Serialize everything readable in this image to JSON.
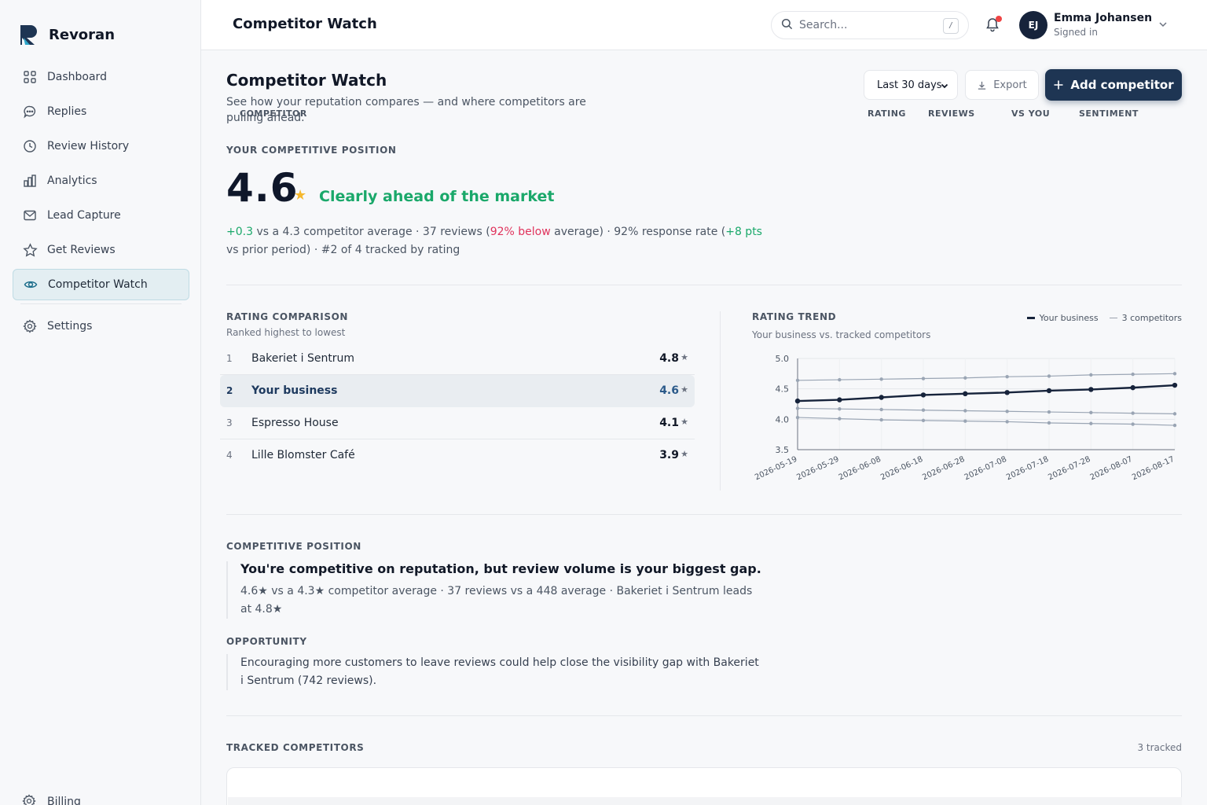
{
  "brand": {
    "name": "Revoran"
  },
  "sidebar": {
    "items": [
      {
        "label": "Dashboard",
        "icon": "grid-icon"
      },
      {
        "label": "Replies",
        "icon": "chat-icon"
      },
      {
        "label": "Review History",
        "icon": "clock-icon"
      },
      {
        "label": "Analytics",
        "icon": "bar-chart-icon"
      },
      {
        "label": "Lead Capture",
        "icon": "mail-icon"
      },
      {
        "label": "Get Reviews",
        "icon": "star-icon"
      },
      {
        "label": "Competitor Watch",
        "icon": "eye-icon",
        "active": true
      },
      {
        "label": "Settings",
        "icon": "gear-icon"
      }
    ],
    "billing": "Billing"
  },
  "header": {
    "title": "Competitor Watch",
    "search_placeholder": "Search...",
    "search_shortcut": "/",
    "user": {
      "initials": "EJ",
      "name": "Emma Johansen",
      "status": "Signed in"
    }
  },
  "page": {
    "title": "Competitor Watch",
    "subtitle": "See how your reputation compares — and where competitors are pulling ahead.",
    "period": "Last 30 days",
    "export_label": "Export",
    "add_label": "Add competitor"
  },
  "position": {
    "label": "YOUR COMPETITIVE POSITION",
    "rating": "4.6",
    "star": "★",
    "verdict": "Clearly ahead of the market",
    "delta": "+0.3",
    "detail_1": " vs a 4.3 competitor average · 37 reviews (",
    "below": "92% below",
    "detail_2": " average) · 92% response rate (",
    "pts": "+8 pts",
    "detail_3": " vs prior period) · #2 of 4 tracked by rating"
  },
  "comparison": {
    "label": "RATING COMPARISON",
    "subtitle": "Ranked highest to lowest",
    "rows": [
      {
        "rank": "1",
        "name": "Bakeriet i Sentrum",
        "rating": "4.8",
        "me": false
      },
      {
        "rank": "2",
        "name": "Your business",
        "rating": "4.6",
        "me": true
      },
      {
        "rank": "3",
        "name": "Espresso House",
        "rating": "4.1",
        "me": false
      },
      {
        "rank": "4",
        "name": "Lille Blomster Café",
        "rating": "3.9",
        "me": false
      }
    ],
    "star": "★"
  },
  "chart_data": {
    "type": "line",
    "title": "RATING TREND",
    "subtitle": "Your business vs. tracked competitors",
    "legend": {
      "position": "top-right",
      "entries": [
        "Your business",
        "3 competitors"
      ]
    },
    "x": [
      "2026-05-19",
      "2026-05-29",
      "2026-06-08",
      "2026-06-18",
      "2026-06-28",
      "2026-07-08",
      "2026-07-18",
      "2026-07-28",
      "2026-08-07",
      "2026-08-17"
    ],
    "ylim": [
      3.5,
      5.0
    ],
    "yticks": [
      "5.0",
      "4.5",
      "4.0",
      "3.5"
    ],
    "grid": true,
    "series": [
      {
        "name": "Your business",
        "color": "#16233b",
        "values": [
          4.3,
          4.32,
          4.36,
          4.4,
          4.42,
          4.44,
          4.47,
          4.49,
          4.52,
          4.56
        ]
      },
      {
        "name": "",
        "color": "#9aa5b4",
        "values": [
          4.64,
          4.65,
          4.66,
          4.67,
          4.68,
          4.7,
          4.71,
          4.73,
          4.74,
          4.75
        ]
      },
      {
        "name": "",
        "color": "#9aa5b4",
        "values": [
          4.18,
          4.17,
          4.16,
          4.15,
          4.14,
          4.13,
          4.12,
          4.11,
          4.1,
          4.09
        ]
      },
      {
        "name": "",
        "color": "#9aa5b4",
        "values": [
          4.03,
          4.01,
          3.99,
          3.98,
          3.97,
          3.96,
          3.94,
          3.93,
          3.92,
          3.9
        ]
      }
    ]
  },
  "insight": {
    "label": "COMPETITIVE POSITION",
    "headline": "You're competitive on reputation, but review volume is your biggest gap.",
    "text": "4.6★ vs a 4.3★ competitor average · 37 reviews vs a 448 average · Bakeriet i Sentrum leads at 4.8★",
    "opp_label": "OPPORTUNITY",
    "opp_text": "Encouraging more customers to leave reviews could help close the visibility gap with Bakeriet i Sentrum (742 reviews)."
  },
  "tracked": {
    "label": "TRACKED COMPETITORS",
    "count": "3 tracked",
    "columns": [
      "COMPETITOR",
      "RATING",
      "REVIEWS",
      "VS YOU",
      "SENTIMENT"
    ]
  },
  "colors": {
    "accent": "#1e3553",
    "positive": "#1aa86a",
    "negative": "#e0335c",
    "star": "#f5b82e"
  }
}
